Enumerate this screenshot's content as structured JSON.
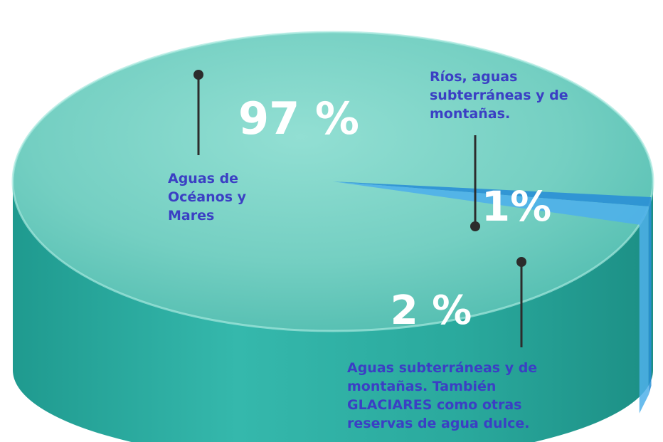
{
  "chart_data": {
    "type": "pie",
    "title": "",
    "slices": [
      {
        "label_lines": [
          "Aguas de",
          "Océanos y",
          "Mares"
        ],
        "value": 97,
        "value_text": "97 %",
        "color": "#3fbfb4"
      },
      {
        "label_lines": [
          "Aguas subterráneas y de",
          "montañas. También",
          "GLACIARES como otras",
          "reservas de agua dulce."
        ],
        "value": 2,
        "value_text": "2 %",
        "color": "#4fb0ea"
      },
      {
        "label_lines": [
          "Ríos, aguas",
          "subterráneas y de",
          "montañas."
        ],
        "value": 1,
        "value_text": "1%",
        "color": "#2a8fd6"
      }
    ]
  },
  "colors": {
    "ocean_top": "#7fd6ca",
    "ocean_side": "#2aa79c",
    "leader": "#2c2c2c",
    "label_text": "#3b3fc4"
  }
}
